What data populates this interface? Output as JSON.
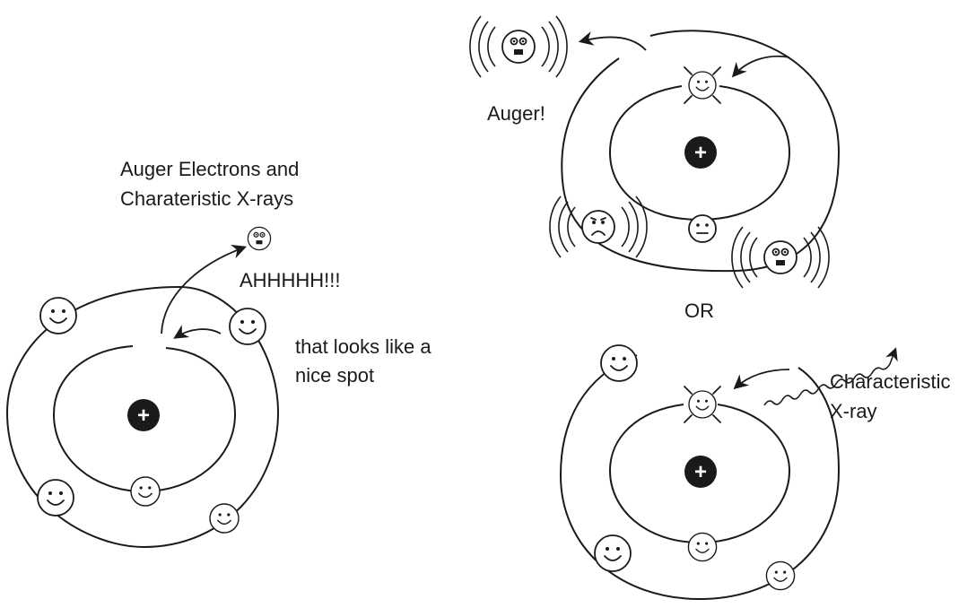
{
  "labels": {
    "title_line1": "Auger Electrons and",
    "title_line2": "Charateristic X-rays",
    "scream": "AHHHHH!!!",
    "thought_line1": "that looks like a",
    "thought_line2": "nice spot",
    "auger": "Auger!",
    "or": "OR",
    "xray_line1": "Characteristic",
    "xray_line2": "X-ray"
  },
  "nucleus_symbol": "+",
  "colors": {
    "ink": "#1a1a1a",
    "background": "#ffffff"
  }
}
